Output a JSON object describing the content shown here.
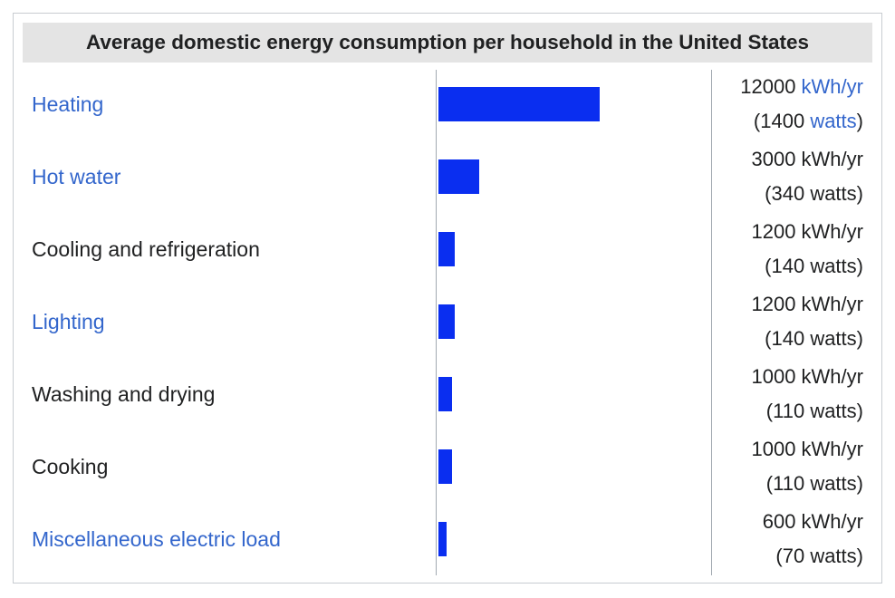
{
  "chart_data": {
    "type": "bar",
    "title": "Average domestic energy consumption per household in the United States",
    "orientation": "horizontal",
    "categories": [
      "Heating",
      "Hot water",
      "Cooling and refrigeration",
      "Lighting",
      "Washing and drying",
      "Cooking",
      "Miscellaneous electric load"
    ],
    "values": [
      12000,
      3000,
      1200,
      1200,
      1000,
      1000,
      600
    ],
    "unit": "kWh/yr",
    "xlim": [
      0,
      12000
    ],
    "rows": [
      {
        "label": "Heating",
        "is_link": true,
        "energy": "12000",
        "energy_unit": "kWh/yr",
        "power_open": "(1400 ",
        "power_unit": "watts",
        "power_close": ")",
        "units_linked": true
      },
      {
        "label": "Hot water",
        "is_link": true,
        "energy": "3000",
        "energy_unit": "kWh/yr",
        "power_open": "(340 ",
        "power_unit": "watts",
        "power_close": ")",
        "units_linked": false
      },
      {
        "label": "Cooling and refrigeration",
        "is_link": false,
        "energy": "1200",
        "energy_unit": "kWh/yr",
        "power_open": "(140 ",
        "power_unit": "watts",
        "power_close": ")",
        "units_linked": false
      },
      {
        "label": "Lighting",
        "is_link": true,
        "energy": "1200",
        "energy_unit": "kWh/yr",
        "power_open": "(140 ",
        "power_unit": "watts",
        "power_close": ")",
        "units_linked": false
      },
      {
        "label": "Washing and drying",
        "is_link": false,
        "energy": "1000",
        "energy_unit": "kWh/yr",
        "power_open": "(110 ",
        "power_unit": "watts",
        "power_close": ")",
        "units_linked": false
      },
      {
        "label": "Cooking",
        "is_link": false,
        "energy": "1000",
        "energy_unit": "kWh/yr",
        "power_open": "(110 ",
        "power_unit": "watts",
        "power_close": ")",
        "units_linked": false
      },
      {
        "label": "Miscellaneous electric load",
        "is_link": true,
        "energy": "600",
        "energy_unit": "kWh/yr",
        "power_open": "(70 ",
        "power_unit": "watts",
        "power_close": ")",
        "units_linked": false
      }
    ]
  },
  "colors": {
    "bar": "#0a2ef0",
    "link": "#3366cc",
    "title_background": "#e4e4e4",
    "divider": "#a2a9b1"
  }
}
